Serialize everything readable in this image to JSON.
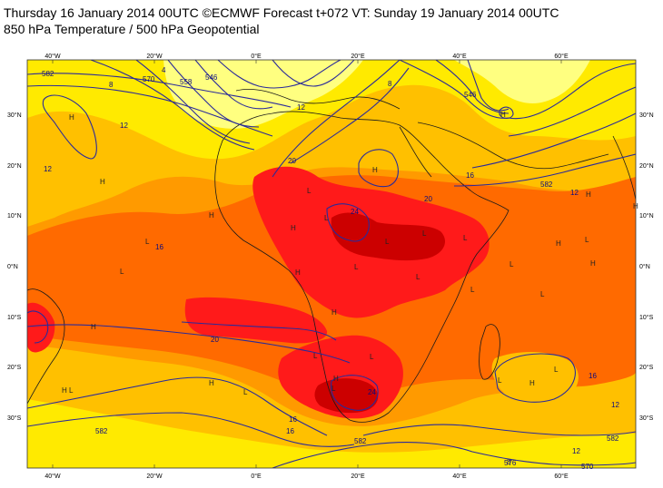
{
  "title": {
    "line1": "Thursday 16 January 2014 00UTC ©ECMWF Forecast t+072 VT: Sunday 19 January 2014 00UTC",
    "line2": "850 hPa Temperature / 500 hPa Geopotential"
  },
  "map": {
    "lon_labels": [
      "40°W",
      "20°W",
      "0°E",
      "20°E",
      "40°E",
      "60°E"
    ],
    "lat_labels": [
      "30°N",
      "20°N",
      "10°N",
      "0°N",
      "10°S",
      "20°S",
      "30°S"
    ],
    "colors": {
      "light_yellow": "#ffff80",
      "yellow": "#ffea00",
      "gold": "#ffc000",
      "orange": "#ff9a00",
      "dark_orange": "#ff6a00",
      "red": "#ff1a1a",
      "dark_red": "#cc0000",
      "contour": "#2a2a9a",
      "coast": "#1a1a1a"
    },
    "geopotential_labels": [
      "582",
      "570",
      "558",
      "546",
      "546",
      "582",
      "582",
      "582",
      "582",
      "570",
      "576"
    ],
    "temperature_labels": [
      "4",
      "8",
      "12",
      "12",
      "12",
      "16",
      "20",
      "20",
      "24",
      "24",
      "16",
      "16",
      "16",
      "12",
      "12",
      "8",
      "8",
      "12",
      "16",
      "20"
    ],
    "highs": [
      "H",
      "H",
      "H",
      "H",
      "H",
      "H",
      "H",
      "H",
      "H",
      "H",
      "H",
      "H",
      "H",
      "H",
      "H",
      "H",
      "H"
    ],
    "lows": [
      "L",
      "L",
      "L",
      "L",
      "L",
      "L",
      "L",
      "L",
      "L",
      "L",
      "L",
      "L",
      "L",
      "L",
      "L",
      "L",
      "L",
      "L",
      "L",
      "L"
    ]
  }
}
